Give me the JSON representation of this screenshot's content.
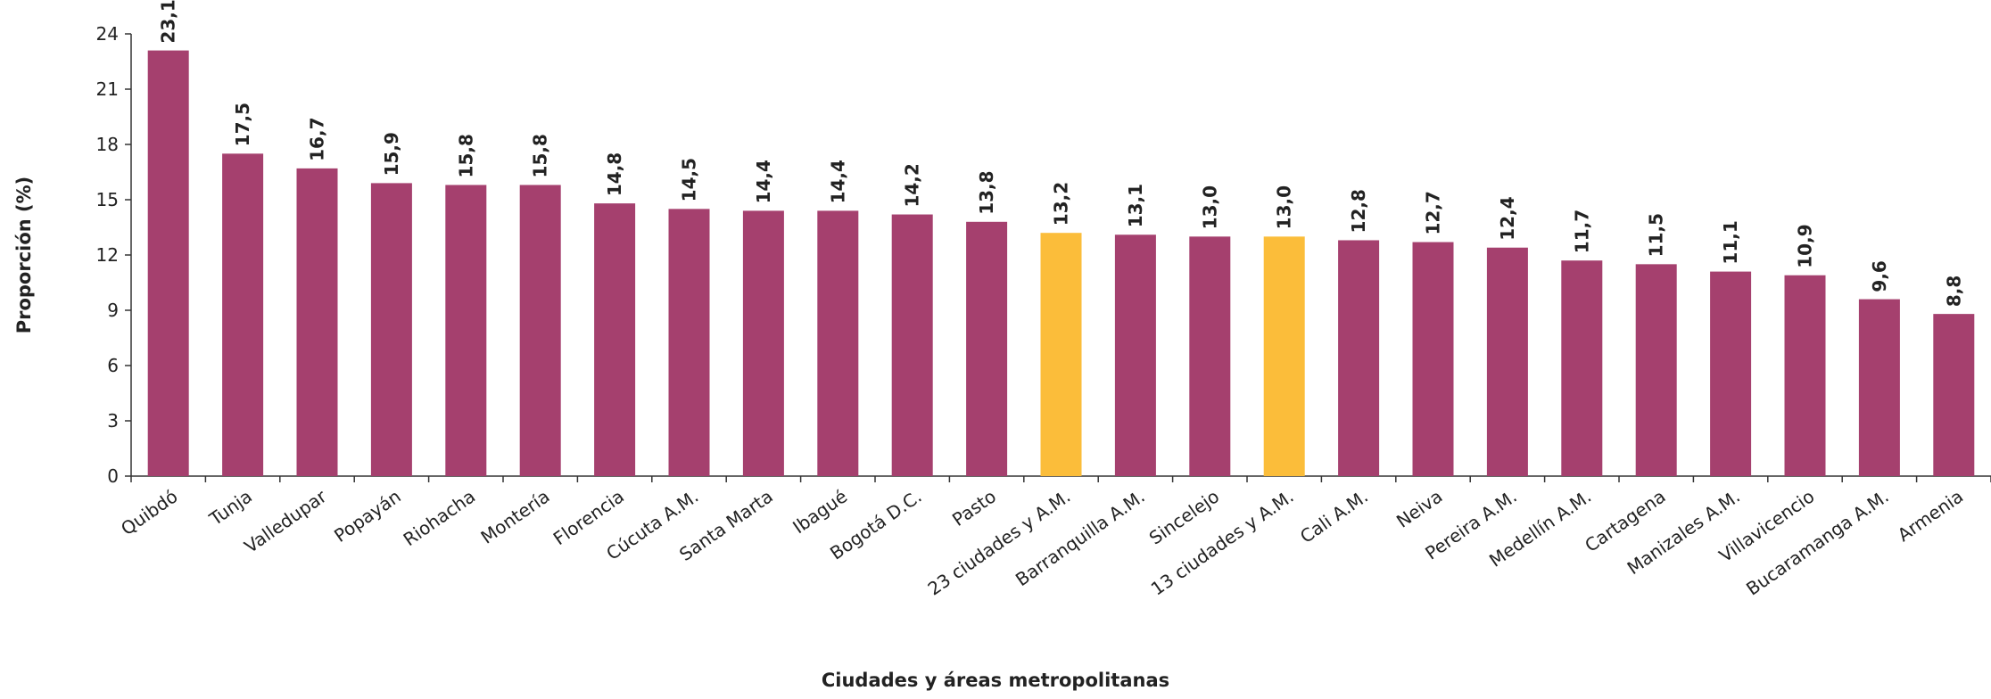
{
  "chart_data": {
    "type": "bar",
    "xlabel": "Ciudades y áreas metropolitanas",
    "ylabel": "Proporción (%)",
    "categories": [
      "Quibdó",
      "Tunja",
      "Valledupar",
      "Popayán",
      "Riohacha",
      "Montería",
      "Florencia",
      "Cúcuta A.M.",
      "Santa Marta",
      "Ibagué",
      "Bogotá D.C.",
      "Pasto",
      "23 ciudades y A.M.",
      "Barranquilla A.M.",
      "Sincelejo",
      "13 ciudades y A.M.",
      "Cali A.M.",
      "Neiva",
      "Pereira A.M.",
      "Medellín A.M.",
      "Cartagena",
      "Manizales A.M.",
      "Villavicencio",
      "Bucaramanga A.M.",
      "Armenia"
    ],
    "values": [
      23.1,
      17.5,
      16.7,
      15.9,
      15.8,
      15.8,
      14.8,
      14.5,
      14.4,
      14.4,
      14.2,
      13.8,
      13.2,
      13.1,
      13.0,
      13.0,
      12.8,
      12.7,
      12.4,
      11.7,
      11.5,
      11.1,
      10.9,
      9.6,
      8.8
    ],
    "value_labels": [
      "23,1",
      "17,5",
      "16,7",
      "15,9",
      "15,8",
      "15,8",
      "14,8",
      "14,5",
      "14,4",
      "14,4",
      "14,2",
      "13,8",
      "13,2",
      "13,1",
      "13,0",
      "13,0",
      "12,8",
      "12,7",
      "12,4",
      "11,7",
      "11,5",
      "11,1",
      "10,9",
      "9,6",
      "8,8"
    ],
    "colors": [
      "#a5406e",
      "#a5406e",
      "#a5406e",
      "#a5406e",
      "#a5406e",
      "#a5406e",
      "#a5406e",
      "#a5406e",
      "#a5406e",
      "#a5406e",
      "#a5406e",
      "#a5406e",
      "#fbbd3a",
      "#a5406e",
      "#a5406e",
      "#fbbd3a",
      "#a5406e",
      "#a5406e",
      "#a5406e",
      "#a5406e",
      "#a5406e",
      "#a5406e",
      "#a5406e",
      "#a5406e",
      "#a5406e"
    ],
    "ylim": [
      0,
      24
    ],
    "yticks": [
      0,
      3,
      6,
      9,
      12,
      15,
      18,
      21,
      24
    ],
    "grid": false
  }
}
